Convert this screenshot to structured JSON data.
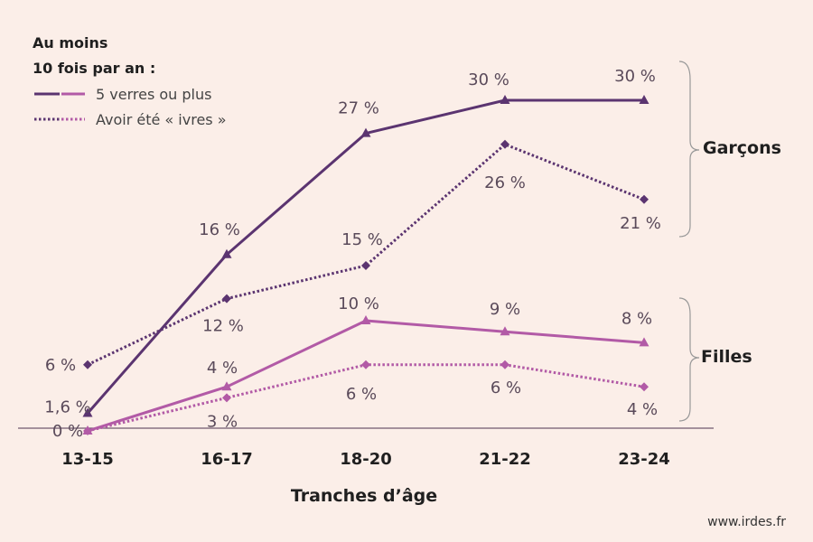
{
  "legend": {
    "title_line1": "Au moins",
    "title_line2": "10 fois par an :",
    "items": [
      {
        "label": "5 verres ou plus",
        "style": "solid"
      },
      {
        "label": "Avoir été « ivres »",
        "style": "dotted"
      }
    ]
  },
  "groups": {
    "boys": "Garçons",
    "girls": "Filles"
  },
  "source": "www.irdes.fr",
  "colors": {
    "boys": "#5b3470",
    "girls": "#b25aa6",
    "background": "#fbeee8",
    "axis": "#6f5a6f"
  },
  "chart_data": {
    "type": "line",
    "categories": [
      "13-15",
      "16-17",
      "18-20",
      "21-22",
      "23-24"
    ],
    "xlabel": "Tranches d’âge",
    "ylim": [
      0,
      32
    ],
    "series": [
      {
        "group": "Garçons",
        "metric": "5 verres ou plus",
        "style": "solid",
        "marker": "triangle",
        "values": [
          1.6,
          16,
          27,
          30,
          30
        ],
        "labels": [
          "1,6 %",
          "16 %",
          "27 %",
          "30 %",
          "30 %"
        ]
      },
      {
        "group": "Garçons",
        "metric": "Avoir été « ivres »",
        "style": "dotted",
        "marker": "diamond",
        "values": [
          6,
          12,
          15,
          26,
          21
        ],
        "labels": [
          "6 %",
          "12 %",
          "15 %",
          "26 %",
          "21 %"
        ]
      },
      {
        "group": "Filles",
        "metric": "5 verres ou plus",
        "style": "solid",
        "marker": "triangle",
        "values": [
          0,
          4,
          10,
          9,
          8
        ],
        "labels": [
          "0 %",
          "4 %",
          "10 %",
          "9 %",
          "8 %"
        ]
      },
      {
        "group": "Filles",
        "metric": "Avoir été « ivres »",
        "style": "dotted",
        "marker": "diamond",
        "values": [
          0,
          3,
          6,
          6,
          4
        ],
        "labels": [
          "",
          "3 %",
          "6 %",
          "6 %",
          "4 %"
        ]
      }
    ]
  }
}
